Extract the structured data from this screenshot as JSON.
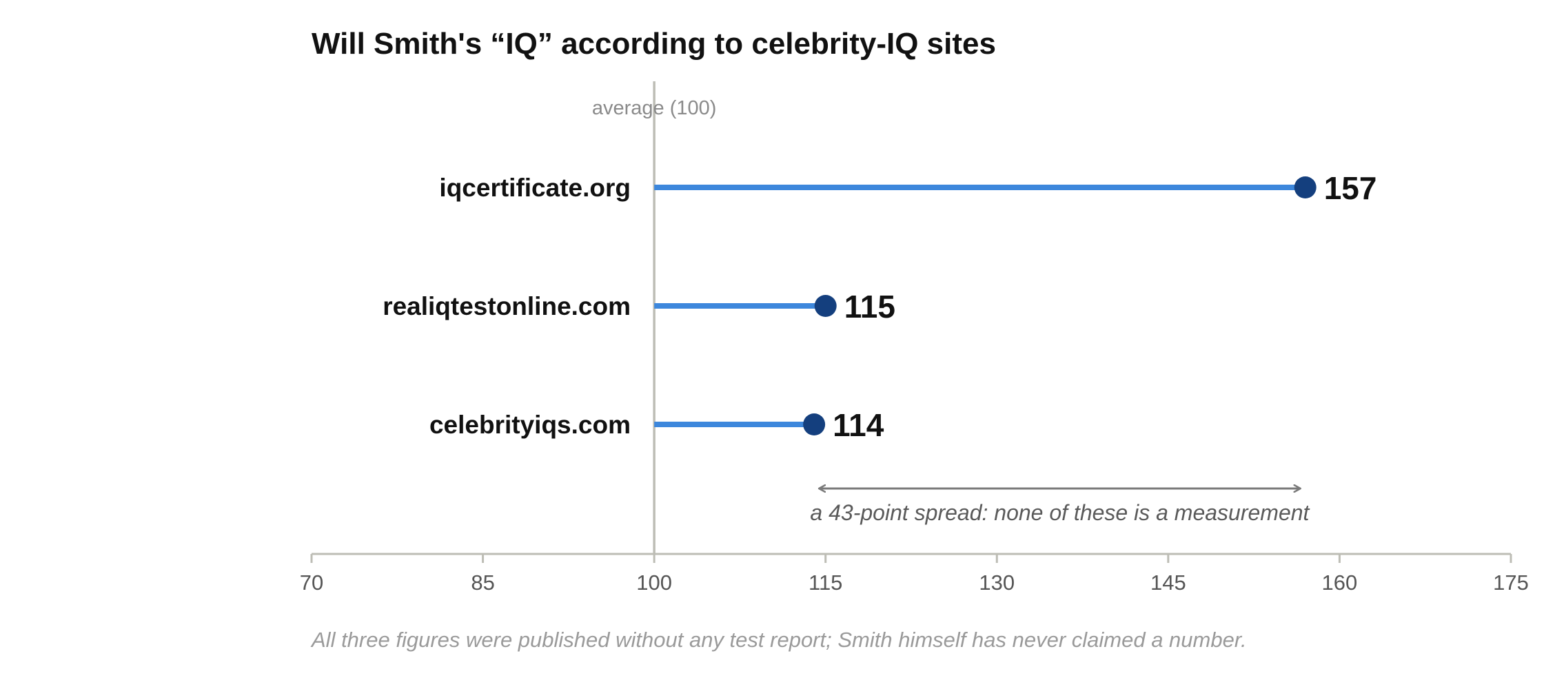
{
  "chart_data": {
    "type": "lollipop",
    "title": "Will Smith's “IQ” according to celebrity-IQ sites",
    "categories": [
      "iqcertificate.org",
      "realiqtestonline.com",
      "celebrityiqs.com"
    ],
    "values": [
      157,
      115,
      114
    ],
    "value_labels": [
      "157",
      "115",
      "114"
    ],
    "xlim": [
      70,
      175
    ],
    "x_ticks": [
      70,
      85,
      100,
      115,
      130,
      145,
      160,
      175
    ],
    "x_tick_labels": [
      "70",
      "85",
      "100",
      "115",
      "130",
      "145",
      "160",
      "175"
    ],
    "reference_line": {
      "value": 100,
      "label": "average (100)"
    },
    "annotation": {
      "text": "a 43-point spread: none of these is a measurement",
      "from": 114,
      "to": 157
    },
    "footnote": "All three figures were published without any test report; Smith himself has never claimed a number.",
    "grid": false,
    "colors": {
      "stem": "#3d87dc",
      "dot": "#143f7e",
      "axis": "#bdbdb5",
      "arrow": "#7a7a7a"
    }
  }
}
